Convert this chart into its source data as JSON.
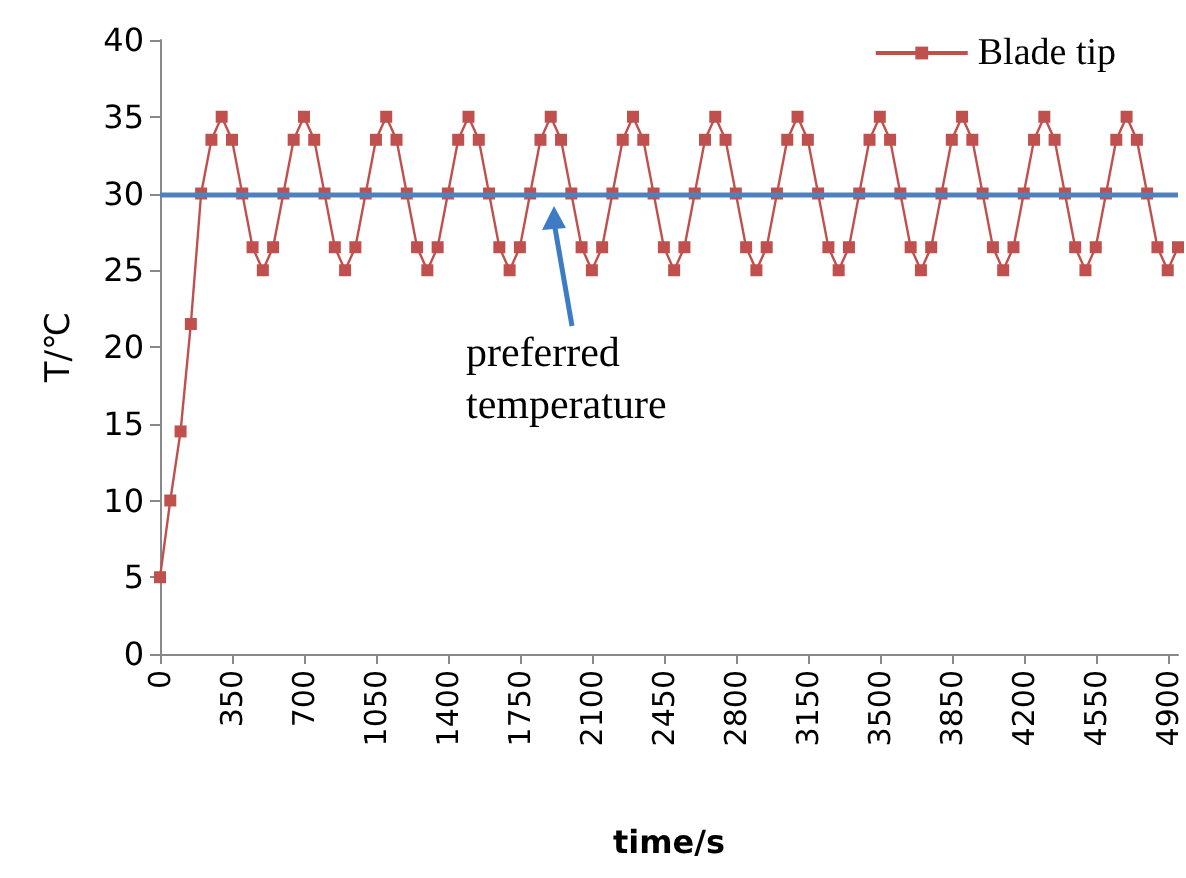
{
  "chart_data": {
    "type": "line",
    "xlabel": "time/s",
    "ylabel": "T/℃",
    "x": [
      0,
      50,
      100,
      150,
      200,
      250,
      300,
      350,
      400,
      450,
      500,
      550,
      600,
      650,
      700,
      750,
      800,
      850,
      900,
      950,
      1000,
      1050,
      1100,
      1150,
      1200,
      1250,
      1300,
      1350,
      1400,
      1450,
      1500,
      1550,
      1600,
      1650,
      1700,
      1750,
      1800,
      1850,
      1900,
      1950,
      2000,
      2050,
      2100,
      2150,
      2200,
      2250,
      2300,
      2350,
      2400,
      2450,
      2500,
      2550,
      2600,
      2650,
      2700,
      2750,
      2800,
      2850,
      2900,
      2950,
      3000,
      3050,
      3100,
      3150,
      3200,
      3250,
      3300,
      3350,
      3400,
      3450,
      3500,
      3550,
      3600,
      3650,
      3700,
      3750,
      3800,
      3850,
      3900,
      3950,
      4000,
      4050,
      4100,
      4150,
      4200,
      4250,
      4300,
      4350,
      4400,
      4450,
      4500,
      4550,
      4600,
      4650,
      4700,
      4750,
      4800,
      4850,
      4900,
      4950
    ],
    "series": [
      {
        "name": "Blade tip",
        "color": "#c0504d",
        "values": [
          5,
          10,
          14.5,
          21.5,
          30,
          33.5,
          35,
          33.5,
          30,
          26.5,
          25,
          26.5,
          30,
          33.5,
          35,
          33.5,
          30,
          26.5,
          25,
          26.5,
          30,
          33.5,
          35,
          33.5,
          30,
          26.5,
          25,
          26.5,
          30,
          33.5,
          35,
          33.5,
          30,
          26.5,
          25,
          26.5,
          30,
          33.5,
          35,
          33.5,
          30,
          26.5,
          25,
          26.5,
          30,
          33.5,
          35,
          33.5,
          30,
          26.5,
          25,
          26.5,
          30,
          33.5,
          35,
          33.5,
          30,
          26.5,
          25,
          26.5,
          30,
          33.5,
          35,
          33.5,
          30,
          26.5,
          25,
          26.5,
          30,
          33.5,
          35,
          33.5,
          30,
          26.5,
          25,
          26.5,
          30,
          33.5,
          35,
          33.5,
          30,
          26.5,
          25,
          26.5,
          30,
          33.5,
          35,
          33.5,
          30,
          26.5,
          25,
          26.5,
          30,
          33.5,
          35,
          33.5,
          30,
          26.5,
          25,
          26.5
        ]
      }
    ],
    "xlim": [
      0,
      4950
    ],
    "xticks": [
      0,
      350,
      700,
      1050,
      1400,
      1750,
      2100,
      2450,
      2800,
      3150,
      3500,
      3850,
      4200,
      4550,
      4900
    ],
    "ylim": [
      0,
      40
    ],
    "yticks": [
      0,
      5,
      10,
      15,
      20,
      25,
      30,
      35,
      40
    ],
    "ref_lines": [
      {
        "axis": "y",
        "value": 30,
        "color": "#4f81bd"
      }
    ],
    "annotations": [
      "preferred temperature"
    ],
    "marker": "square",
    "line_style": "solid",
    "legend": "top right",
    "grid": false
  }
}
